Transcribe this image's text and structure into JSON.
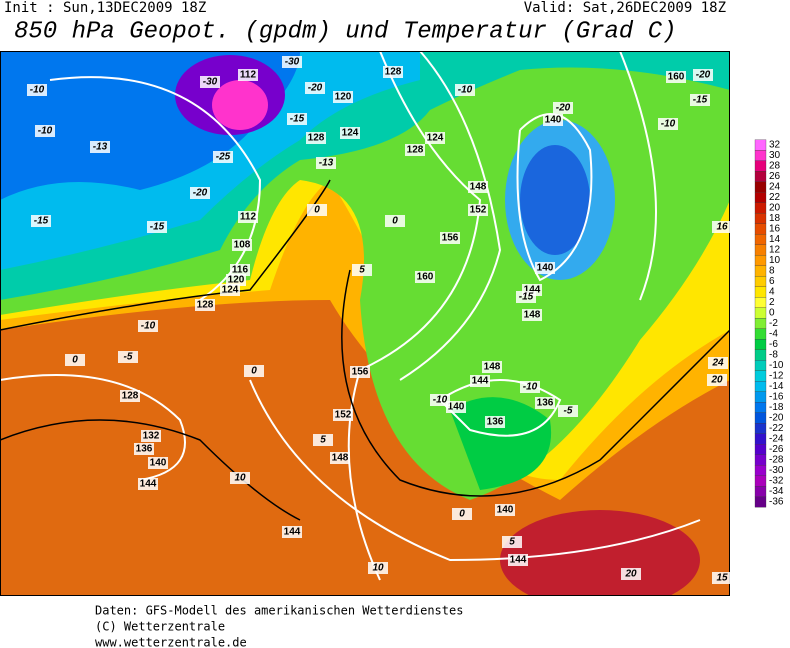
{
  "header": {
    "init": "Init : Sun,13DEC2009 18Z",
    "valid": "Valid: Sat,26DEC2009 18Z",
    "title": "850 hPa Geopot. (gpdm) und Temperatur (Grad C)"
  },
  "map": {
    "geopotential_labels": [
      112,
      128,
      120,
      124,
      128,
      124,
      128,
      148,
      152,
      156,
      160,
      112,
      108,
      116,
      120,
      124,
      128,
      140,
      140,
      144,
      148,
      160,
      156,
      152,
      148,
      148,
      144,
      140,
      136,
      136,
      128,
      132,
      136,
      140,
      144,
      144,
      140,
      144
    ],
    "temperature_labels": [
      -30,
      -30,
      -20,
      -10,
      -10,
      -13,
      -15,
      -15,
      -20,
      -25,
      -15,
      -13,
      -10,
      -20,
      -15,
      -10,
      -20,
      -15,
      -10,
      -5,
      0,
      0,
      0,
      0,
      5,
      -10,
      -10,
      -5,
      5,
      10,
      0,
      5,
      10,
      20,
      15,
      16,
      20,
      24
    ]
  },
  "legend": {
    "values": [
      32,
      30,
      28,
      26,
      24,
      22,
      20,
      18,
      16,
      14,
      12,
      10,
      8,
      6,
      4,
      2,
      0,
      -2,
      -4,
      -6,
      -8,
      -10,
      -12,
      -14,
      -16,
      -18,
      -20,
      -22,
      -24,
      -26,
      -28,
      -30,
      -32,
      -34,
      -36
    ],
    "colors": [
      "#ff66ff",
      "#ff33cc",
      "#e6007a",
      "#b3003c",
      "#990000",
      "#b30000",
      "#cc1a00",
      "#d93300",
      "#e64d00",
      "#f06600",
      "#f78000",
      "#ff9900",
      "#ffb300",
      "#ffcc00",
      "#ffe600",
      "#ffff33",
      "#ccff33",
      "#80ee33",
      "#33dd33",
      "#00cc44",
      "#00cc88",
      "#00ccbb",
      "#00ccdd",
      "#00bbee",
      "#0099ee",
      "#0077ee",
      "#0055dd",
      "#1a33cc",
      "#3311cc",
      "#5500cc",
      "#7700cc",
      "#9900cc",
      "#aa00bb",
      "#8800aa",
      "#660088"
    ]
  },
  "footer": {
    "line1": "Daten: GFS-Modell des amerikanischen Wetterdienstes",
    "line2": "(C) Wetterzentrale",
    "line3": "www.wetterzentrale.de"
  }
}
